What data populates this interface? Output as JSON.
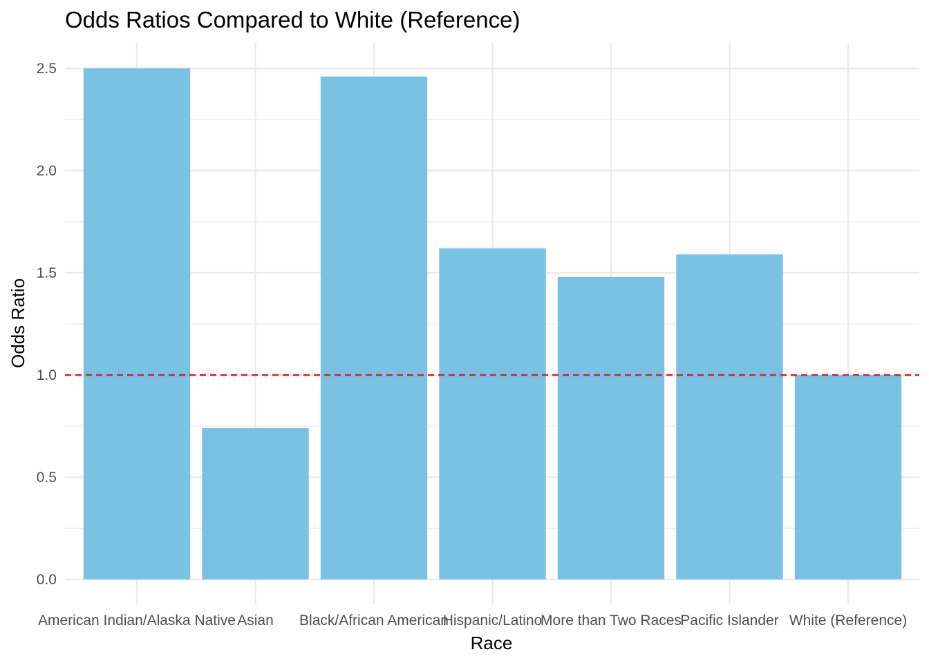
{
  "chart_data": {
    "type": "bar",
    "title": "Odds Ratios Compared to White (Reference)",
    "xlabel": "Race",
    "ylabel": "Odds Ratio",
    "categories": [
      "American Indian/Alaska Native",
      "Asian",
      "Black/African American",
      "Hispanic/Latino",
      "More than Two Races",
      "Pacific Islander",
      "White (Reference)"
    ],
    "values": [
      2.5,
      0.74,
      2.46,
      1.62,
      1.48,
      1.59,
      1.0
    ],
    "ylim": [
      0,
      2.5
    ],
    "yticks": [
      "0.0",
      "0.5",
      "1.0",
      "1.5",
      "2.0",
      "2.5"
    ],
    "reference_line": {
      "y": 1.0,
      "style": "dashed",
      "color": "#e41a1c"
    },
    "bar_color": "#7ac2e4",
    "grid": true,
    "legend": "none"
  }
}
